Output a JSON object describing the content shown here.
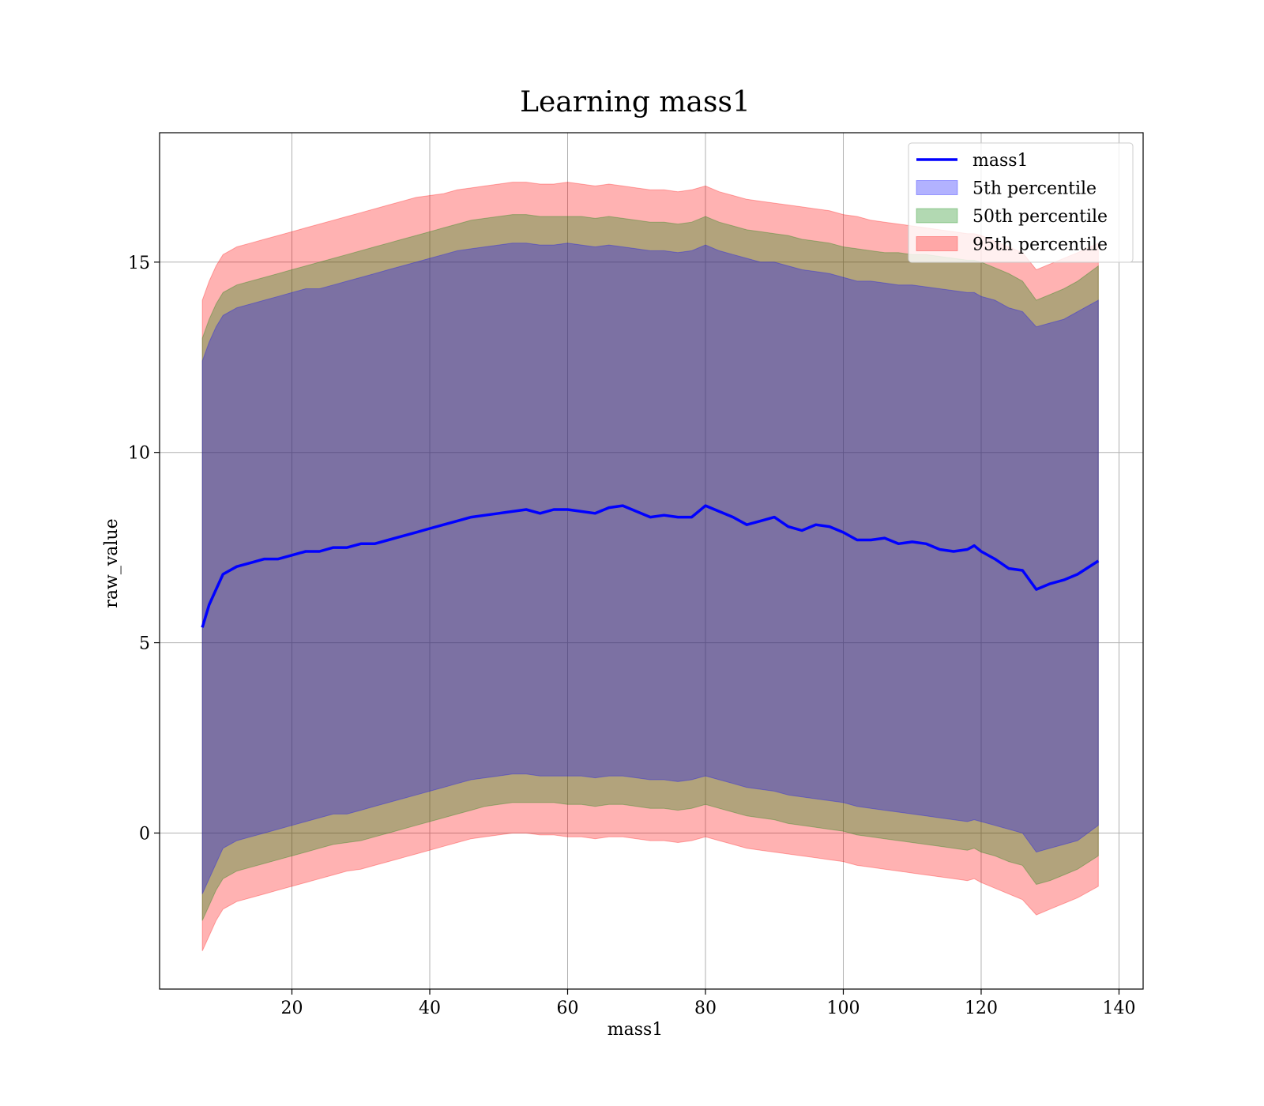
{
  "chart_data": {
    "type": "area",
    "title": "Learning mass1",
    "xlabel": "mass1",
    "ylabel": "raw_value",
    "xlim": [
      0.8,
      143.5
    ],
    "ylim": [
      -4.1,
      18.4
    ],
    "xticks": [
      20,
      40,
      60,
      80,
      100,
      120,
      140
    ],
    "yticks": [
      0,
      5,
      10,
      15
    ],
    "grid": true,
    "legend_position": "top-right",
    "legend": [
      "mass1",
      "5th percentile",
      "50th percentile",
      "95th percentile"
    ],
    "colors": {
      "mass1": "#0000ff",
      "p5": "#0000ff",
      "p50": "#008000",
      "p95": "#ff0000"
    },
    "x": [
      7,
      8,
      9,
      10,
      11,
      12,
      14,
      16,
      18,
      20,
      22,
      24,
      26,
      28,
      30,
      32,
      34,
      36,
      38,
      40,
      42,
      44,
      46,
      48,
      50,
      52,
      54,
      56,
      58,
      60,
      62,
      64,
      66,
      68,
      70,
      72,
      74,
      76,
      78,
      80,
      82,
      84,
      86,
      88,
      90,
      92,
      94,
      96,
      98,
      100,
      102,
      104,
      106,
      108,
      110,
      112,
      114,
      116,
      118,
      119,
      120,
      122,
      124,
      126,
      128,
      130,
      132,
      134,
      137
    ],
    "series": [
      {
        "name": "mass1",
        "role": "line",
        "values": [
          5.4,
          6.0,
          6.4,
          6.8,
          6.9,
          7.0,
          7.1,
          7.2,
          7.2,
          7.3,
          7.4,
          7.4,
          7.5,
          7.5,
          7.6,
          7.6,
          7.7,
          7.8,
          7.9,
          8.0,
          8.1,
          8.2,
          8.3,
          8.35,
          8.4,
          8.45,
          8.5,
          8.4,
          8.5,
          8.5,
          8.45,
          8.4,
          8.55,
          8.6,
          8.45,
          8.3,
          8.35,
          8.3,
          8.3,
          8.6,
          8.45,
          8.3,
          8.1,
          8.2,
          8.3,
          8.05,
          7.95,
          8.1,
          8.05,
          7.9,
          7.7,
          7.7,
          7.75,
          7.6,
          7.65,
          7.6,
          7.45,
          7.4,
          7.45,
          7.55,
          7.4,
          7.2,
          6.95,
          6.9,
          6.4,
          6.55,
          6.65,
          6.8,
          7.15
        ]
      },
      {
        "name": "5th percentile",
        "role": "band",
        "lower": [
          -1.6,
          -1.2,
          -0.8,
          -0.4,
          -0.3,
          -0.2,
          -0.1,
          0.0,
          0.1,
          0.2,
          0.3,
          0.4,
          0.5,
          0.5,
          0.6,
          0.7,
          0.8,
          0.9,
          1.0,
          1.1,
          1.2,
          1.3,
          1.4,
          1.45,
          1.5,
          1.55,
          1.55,
          1.5,
          1.5,
          1.5,
          1.5,
          1.45,
          1.5,
          1.5,
          1.45,
          1.4,
          1.4,
          1.35,
          1.4,
          1.5,
          1.4,
          1.3,
          1.2,
          1.15,
          1.1,
          1.0,
          0.95,
          0.9,
          0.85,
          0.8,
          0.7,
          0.65,
          0.6,
          0.55,
          0.5,
          0.45,
          0.4,
          0.35,
          0.3,
          0.35,
          0.3,
          0.2,
          0.1,
          0.0,
          -0.5,
          -0.4,
          -0.3,
          -0.2,
          0.2
        ],
        "upper": [
          12.4,
          12.9,
          13.3,
          13.6,
          13.7,
          13.8,
          13.9,
          14.0,
          14.1,
          14.2,
          14.3,
          14.3,
          14.4,
          14.5,
          14.6,
          14.7,
          14.8,
          14.9,
          15.0,
          15.1,
          15.2,
          15.3,
          15.35,
          15.4,
          15.45,
          15.5,
          15.5,
          15.45,
          15.45,
          15.5,
          15.45,
          15.4,
          15.45,
          15.4,
          15.35,
          15.3,
          15.3,
          15.25,
          15.3,
          15.45,
          15.3,
          15.2,
          15.1,
          15.0,
          15.0,
          14.9,
          14.8,
          14.75,
          14.7,
          14.6,
          14.5,
          14.5,
          14.45,
          14.4,
          14.4,
          14.35,
          14.3,
          14.25,
          14.2,
          14.2,
          14.1,
          14.0,
          13.8,
          13.7,
          13.3,
          13.4,
          13.5,
          13.7,
          14.0
        ]
      },
      {
        "name": "50th percentile",
        "role": "band",
        "lower": [
          -2.3,
          -1.9,
          -1.5,
          -1.2,
          -1.1,
          -1.0,
          -0.9,
          -0.8,
          -0.7,
          -0.6,
          -0.5,
          -0.4,
          -0.3,
          -0.25,
          -0.2,
          -0.1,
          0.0,
          0.1,
          0.2,
          0.3,
          0.4,
          0.5,
          0.6,
          0.7,
          0.75,
          0.8,
          0.8,
          0.8,
          0.8,
          0.75,
          0.75,
          0.7,
          0.75,
          0.75,
          0.7,
          0.65,
          0.65,
          0.6,
          0.65,
          0.75,
          0.65,
          0.55,
          0.45,
          0.4,
          0.35,
          0.25,
          0.2,
          0.15,
          0.1,
          0.05,
          -0.05,
          -0.1,
          -0.15,
          -0.2,
          -0.25,
          -0.3,
          -0.35,
          -0.4,
          -0.45,
          -0.4,
          -0.5,
          -0.6,
          -0.75,
          -0.85,
          -1.35,
          -1.25,
          -1.1,
          -0.95,
          -0.6
        ],
        "upper": [
          13.0,
          13.5,
          13.9,
          14.2,
          14.3,
          14.4,
          14.5,
          14.6,
          14.7,
          14.8,
          14.9,
          15.0,
          15.1,
          15.2,
          15.3,
          15.4,
          15.5,
          15.6,
          15.7,
          15.8,
          15.9,
          16.0,
          16.1,
          16.15,
          16.2,
          16.25,
          16.25,
          16.2,
          16.2,
          16.2,
          16.2,
          16.15,
          16.2,
          16.15,
          16.1,
          16.05,
          16.05,
          16.0,
          16.05,
          16.2,
          16.05,
          15.95,
          15.85,
          15.8,
          15.75,
          15.7,
          15.6,
          15.55,
          15.5,
          15.4,
          15.35,
          15.3,
          15.25,
          15.25,
          15.2,
          15.2,
          15.15,
          15.1,
          15.05,
          15.05,
          15.0,
          14.85,
          14.7,
          14.5,
          14.0,
          14.15,
          14.3,
          14.5,
          14.9
        ]
      },
      {
        "name": "95th percentile",
        "role": "band",
        "lower": [
          -3.1,
          -2.7,
          -2.3,
          -2.0,
          -1.9,
          -1.8,
          -1.7,
          -1.6,
          -1.5,
          -1.4,
          -1.3,
          -1.2,
          -1.1,
          -1.0,
          -0.95,
          -0.85,
          -0.75,
          -0.65,
          -0.55,
          -0.45,
          -0.35,
          -0.25,
          -0.15,
          -0.1,
          -0.05,
          0.0,
          0.0,
          -0.05,
          -0.05,
          -0.1,
          -0.1,
          -0.15,
          -0.1,
          -0.1,
          -0.15,
          -0.2,
          -0.2,
          -0.25,
          -0.2,
          -0.1,
          -0.2,
          -0.3,
          -0.4,
          -0.45,
          -0.5,
          -0.55,
          -0.6,
          -0.65,
          -0.7,
          -0.75,
          -0.85,
          -0.9,
          -0.95,
          -1.0,
          -1.05,
          -1.1,
          -1.15,
          -1.2,
          -1.25,
          -1.2,
          -1.3,
          -1.45,
          -1.6,
          -1.75,
          -2.15,
          -2.0,
          -1.85,
          -1.7,
          -1.4
        ],
        "upper": [
          14.0,
          14.5,
          14.9,
          15.2,
          15.3,
          15.4,
          15.5,
          15.6,
          15.7,
          15.8,
          15.9,
          16.0,
          16.1,
          16.2,
          16.3,
          16.4,
          16.5,
          16.6,
          16.7,
          16.75,
          16.8,
          16.9,
          16.95,
          17.0,
          17.05,
          17.1,
          17.1,
          17.05,
          17.05,
          17.1,
          17.05,
          17.0,
          17.05,
          17.0,
          16.95,
          16.9,
          16.9,
          16.85,
          16.9,
          17.0,
          16.85,
          16.75,
          16.65,
          16.6,
          16.55,
          16.5,
          16.45,
          16.4,
          16.35,
          16.25,
          16.2,
          16.1,
          16.05,
          16.0,
          15.95,
          15.9,
          15.85,
          15.8,
          15.75,
          15.75,
          15.7,
          15.55,
          15.4,
          15.25,
          14.8,
          14.95,
          15.1,
          15.25,
          15.5
        ]
      }
    ]
  }
}
